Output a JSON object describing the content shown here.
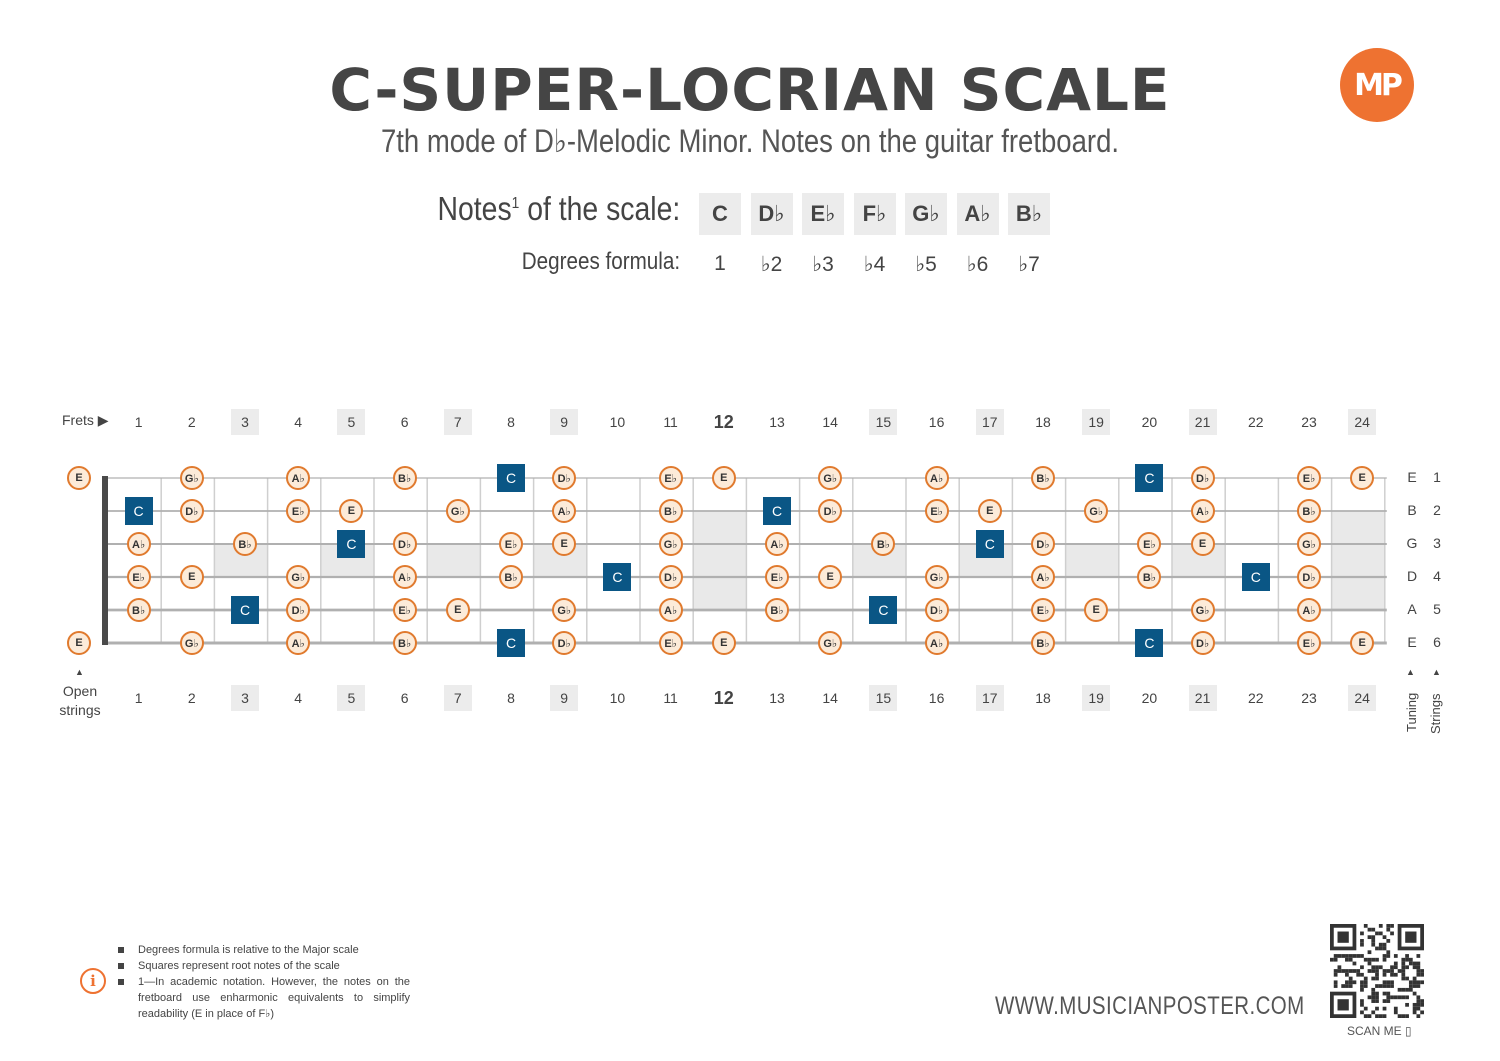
{
  "header": {
    "title": "C-SUPER-LOCRIAN SCALE",
    "subtitle": "7th mode of D♭-Melodic Minor. Notes on the guitar fretboard.",
    "logo_text": "MP"
  },
  "scale": {
    "notes_label": "Notes",
    "notes_label_sup": "1",
    "notes_label_suffix": " of the scale:",
    "degrees_label": "Degrees formula:",
    "notes": [
      "C",
      "D♭",
      "E♭",
      "F♭",
      "G♭",
      "A♭",
      "B♭"
    ],
    "degrees": [
      "1",
      "♭2",
      "♭3",
      "♭4",
      "♭5",
      "♭6",
      "♭7"
    ]
  },
  "fretboard": {
    "frets_label": "Frets",
    "open_label_line1": "Open",
    "open_label_line2": "strings",
    "tuning_label": "Tuning",
    "strings_label": "Strings",
    "fret_numbers": [
      "1",
      "2",
      "3",
      "4",
      "5",
      "6",
      "7",
      "8",
      "9",
      "10",
      "11",
      "12",
      "13",
      "14",
      "15",
      "16",
      "17",
      "18",
      "19",
      "20",
      "21",
      "22",
      "23",
      "24"
    ],
    "highlighted_frets": [
      3,
      5,
      7,
      9,
      15,
      17,
      19,
      21,
      24
    ],
    "bold_fret": 12,
    "tuning": [
      "E",
      "B",
      "G",
      "D",
      "A",
      "E"
    ],
    "string_numbers": [
      "1",
      "2",
      "3",
      "4",
      "5",
      "6"
    ],
    "open_notes": [
      "E",
      null,
      null,
      null,
      null,
      "E"
    ],
    "positions": [
      [
        "",
        "Gb",
        "",
        "Ab",
        "",
        "Bb",
        "",
        "C",
        "Db",
        "",
        "Eb",
        "E",
        "",
        "Gb",
        "",
        "Ab",
        "",
        "Bb",
        "",
        "C",
        "Db",
        "",
        "Eb",
        "E"
      ],
      [
        "C",
        "Db",
        "",
        "Eb",
        "E",
        "",
        "Gb",
        "",
        "Ab",
        "",
        "Bb",
        "",
        "C",
        "Db",
        "",
        "Eb",
        "E",
        "",
        "Gb",
        "",
        "Ab",
        "",
        "Bb",
        ""
      ],
      [
        "Ab",
        "",
        "Bb",
        "",
        "C",
        "Db",
        "",
        "Eb",
        "E",
        "",
        "Gb",
        "",
        "Ab",
        "",
        "Bb",
        "",
        "C",
        "Db",
        "",
        "Eb",
        "E",
        "",
        "Gb",
        ""
      ],
      [
        "Eb",
        "E",
        "",
        "Gb",
        "",
        "Ab",
        "",
        "Bb",
        "",
        "C",
        "Db",
        "",
        "Eb",
        "E",
        "",
        "Gb",
        "",
        "Ab",
        "",
        "Bb",
        "",
        "C",
        "Db",
        ""
      ],
      [
        "Bb",
        "",
        "C",
        "Db",
        "",
        "Eb",
        "E",
        "",
        "Gb",
        "",
        "Ab",
        "",
        "Bb",
        "",
        "C",
        "Db",
        "",
        "Eb",
        "E",
        "",
        "Gb",
        "",
        "Ab",
        ""
      ],
      [
        "",
        "Gb",
        "",
        "Ab",
        "",
        "Bb",
        "",
        "C",
        "Db",
        "",
        "Eb",
        "E",
        "",
        "Gb",
        "",
        "Ab",
        "",
        "Bb",
        "",
        "C",
        "Db",
        "",
        "Eb",
        "E"
      ]
    ]
  },
  "footer": {
    "notes": [
      "Degrees formula is relative to the Major scale",
      "Squares represent root notes of the scale",
      "1—In academic notation. However, the notes on the fretboard use enharmonic equivalents to simplify readability (E in place of F♭)"
    ],
    "website": "WWW.MUSICIANPOSTER.COM",
    "scan_me": "SCAN ME ▯"
  },
  "colors": {
    "accent": "#ee7231",
    "root": "#0a5685",
    "note_fill": "#fcebd9",
    "note_stroke": "#e07a2e"
  }
}
